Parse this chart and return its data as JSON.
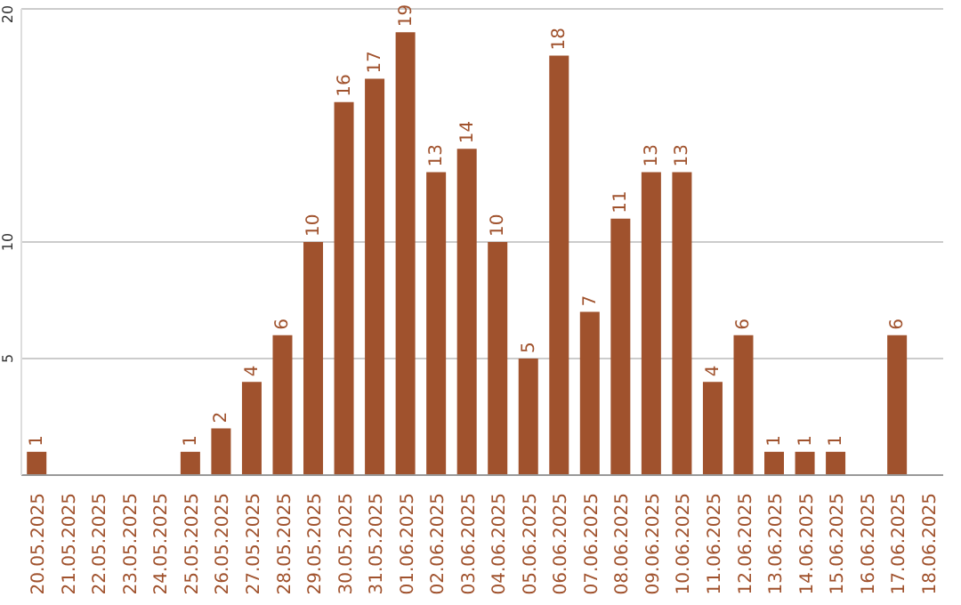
{
  "chart_data": {
    "type": "bar",
    "categories": [
      "20.05.2025",
      "21.05.2025",
      "22.05.2025",
      "23.05.2025",
      "24.05.2025",
      "25.05.2025",
      "26.05.2025",
      "27.05.2025",
      "28.05.2025",
      "29.05.2025",
      "30.05.2025",
      "31.05.2025",
      "01.06.2025",
      "02.06.2025",
      "03.06.2025",
      "04.06.2025",
      "05.06.2025",
      "06.06.2025",
      "07.06.2025",
      "08.06.2025",
      "09.06.2025",
      "10.06.2025",
      "11.06.2025",
      "12.06.2025",
      "13.06.2025",
      "14.06.2025",
      "15.06.2025",
      "16.06.2025",
      "17.06.2025",
      "18.06.2025"
    ],
    "values": [
      1,
      0,
      0,
      0,
      0,
      1,
      2,
      4,
      6,
      10,
      16,
      17,
      19,
      13,
      14,
      10,
      5,
      18,
      7,
      11,
      13,
      13,
      4,
      6,
      1,
      1,
      1,
      0,
      6,
      0
    ],
    "value_labels": [
      "1",
      null,
      null,
      null,
      null,
      "1",
      "2",
      "4",
      "6",
      "10",
      "16",
      "17",
      "19",
      "13",
      "14",
      "10",
      "5",
      "18",
      "7",
      "11",
      "13",
      "13",
      "4",
      "6",
      "1",
      "1",
      "1",
      null,
      "6",
      null
    ],
    "color": "#a0522d",
    "ylim": [
      0,
      20
    ],
    "yticks": [
      5,
      10,
      20
    ],
    "grid": "y"
  }
}
